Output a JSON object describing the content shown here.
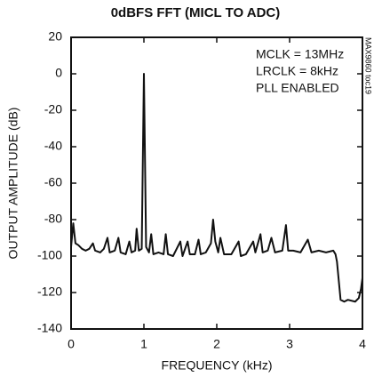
{
  "chart_data": {
    "type": "line",
    "title": "0dBFS FFT (MICL TO ADC)",
    "x_label": "FREQUENCY (kHz)",
    "y_label": "OUTPUT AMPLITUDE (dB)",
    "annotations": [
      "MCLK = 13MHz",
      "LRCLK = 8kHz",
      "PLL ENABLED"
    ],
    "side_note": "MAX9860 toc19",
    "xlim": [
      0,
      4
    ],
    "ylim": [
      -140,
      20
    ],
    "xticks": [
      0,
      1,
      2,
      3,
      4
    ],
    "yticks": [
      20,
      0,
      -20,
      -40,
      -60,
      -80,
      -100,
      -120,
      -140
    ],
    "grid": false,
    "series": [
      {
        "color": "#111111",
        "x": [
          0,
          0.03,
          0.06,
          0.1,
          0.15,
          0.2,
          0.25,
          0.3,
          0.33,
          0.4,
          0.45,
          0.5,
          0.53,
          0.6,
          0.65,
          0.68,
          0.75,
          0.8,
          0.83,
          0.88,
          0.9,
          0.93,
          0.97,
          1.0,
          1.03,
          1.07,
          1.1,
          1.13,
          1.2,
          1.27,
          1.3,
          1.33,
          1.4,
          1.5,
          1.53,
          1.6,
          1.63,
          1.7,
          1.75,
          1.78,
          1.85,
          1.92,
          1.95,
          1.98,
          2.02,
          2.05,
          2.1,
          2.2,
          2.3,
          2.33,
          2.4,
          2.5,
          2.53,
          2.6,
          2.63,
          2.7,
          2.75,
          2.8,
          2.9,
          2.95,
          2.98,
          3.05,
          3.15,
          3.25,
          3.3,
          3.4,
          3.5,
          3.6,
          3.63,
          3.65,
          3.7,
          3.75,
          3.8,
          3.9,
          3.95,
          3.98,
          4.0
        ],
        "values": [
          -95,
          -82,
          -93,
          -94,
          -96,
          -97,
          -96,
          -93,
          -97,
          -98,
          -96,
          -90,
          -98,
          -97,
          -90,
          -98,
          -99,
          -92,
          -98,
          -97,
          -85,
          -97,
          -96,
          0,
          -95,
          -98,
          -88,
          -99,
          -98,
          -99,
          -88,
          -99,
          -100,
          -92,
          -100,
          -92,
          -99,
          -99,
          -91,
          -99,
          -98,
          -93,
          -80,
          -92,
          -98,
          -90,
          -99,
          -99,
          -92,
          -100,
          -99,
          -92,
          -98,
          -88,
          -98,
          -97,
          -90,
          -98,
          -97,
          -83,
          -97,
          -97,
          -98,
          -91,
          -98,
          -97,
          -98,
          -97,
          -99,
          -103,
          -124,
          -125,
          -124,
          -125,
          -123,
          -118,
          -112
        ]
      }
    ]
  }
}
